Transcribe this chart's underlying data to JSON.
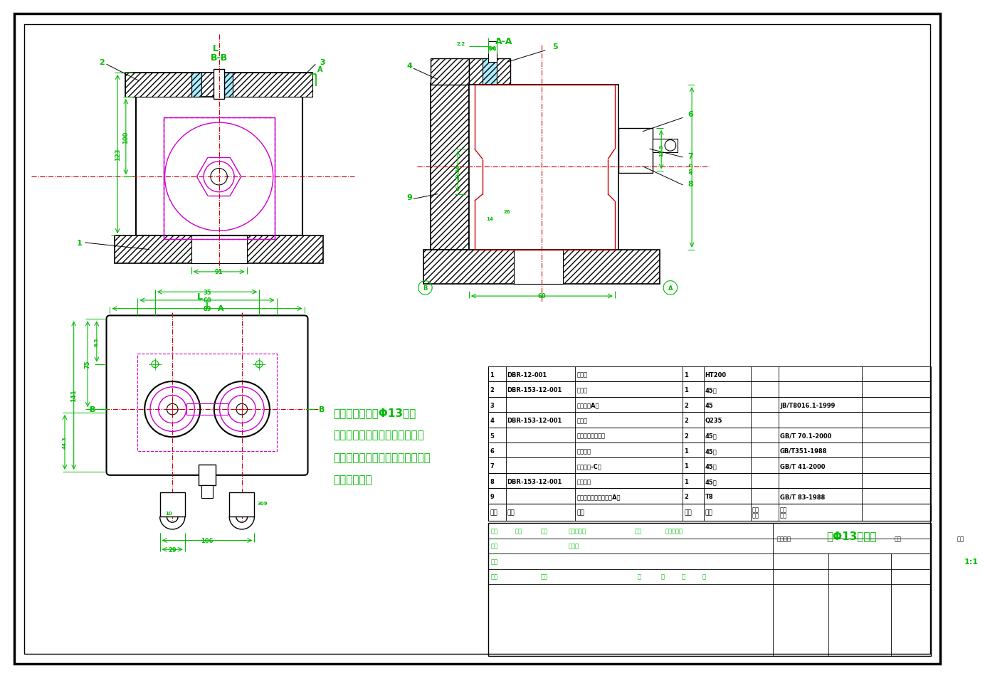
{
  "background_color": "#ffffff",
  "gc": "#00bb00",
  "rc": "#cc0000",
  "bc": "#000000",
  "mc": "#cc00cc",
  "cc": "#00bbbb",
  "note_lines": [
    "本夹具用于加工Φ13孔。",
    "工件以两面和销实现六面定位，",
    "工序基准和设计基准重合是底面，",
    "利用螺母夹紧"
  ],
  "bom_rows": [
    [
      "9",
      "",
      "开槽带球面圆柱头螺钉A型",
      "2",
      "T8",
      "",
      "GB/T 83-1988"
    ],
    [
      "8",
      "DBR-153-12-001",
      "刚性心轴",
      "1",
      "45钓",
      "",
      ""
    ],
    [
      "7",
      "",
      "六角螺母-C级",
      "1",
      "45钓",
      "",
      "GB/T 41-2000"
    ],
    [
      "6",
      "",
      "开口坠圈",
      "1",
      "45钓",
      "",
      "GB/T351-1988"
    ],
    [
      "5",
      "",
      "内六角圆柱头螺钉",
      "2",
      "45钓",
      "",
      "GB/T 70.1-2000"
    ],
    [
      "4",
      "DBR-153-12-001",
      "固定钓",
      "2",
      "Q235",
      "",
      ""
    ],
    [
      "3",
      "",
      "固定钉套A型",
      "2",
      "45",
      "",
      "JB/T8016.1-1999"
    ],
    [
      "2",
      "DBR-153-12-001",
      "钔模板",
      "1",
      "45钓",
      "",
      ""
    ],
    [
      "1",
      "DBR-12-001",
      "夹具体",
      "1",
      "HT200",
      "",
      ""
    ]
  ],
  "bom_col_widths": [
    25,
    100,
    155,
    30,
    68,
    40,
    120
  ],
  "scale_text": "1:1",
  "drawing_title": "钔Φ13孔夹具"
}
